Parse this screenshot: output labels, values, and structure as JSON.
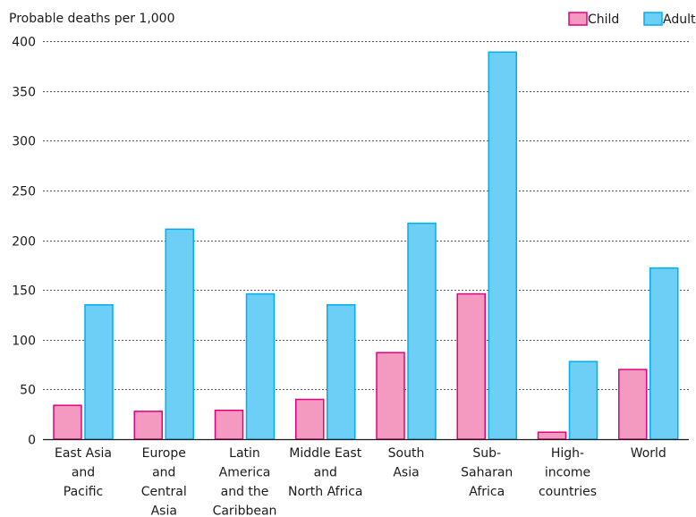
{
  "chart_data": {
    "type": "bar",
    "ylabel": "Probable deaths per 1,000",
    "ylim": [
      0,
      400
    ],
    "yticks": [
      0,
      50,
      100,
      150,
      200,
      250,
      300,
      350,
      400
    ],
    "grid": true,
    "legend_position": "top-right",
    "categories": [
      [
        "East Asia",
        "and",
        "Pacific"
      ],
      [
        "Europe",
        "and",
        "Central",
        "Asia"
      ],
      [
        "Latin",
        "America",
        "and the",
        "Caribbean"
      ],
      [
        "Middle East",
        "and",
        "North Africa"
      ],
      [
        "South",
        "Asia"
      ],
      [
        "Sub-",
        "Saharan",
        "Africa"
      ],
      [
        "High-",
        "income",
        "countries"
      ],
      [
        "World"
      ]
    ],
    "series": [
      {
        "name": "Child",
        "color": "#f49ac1",
        "stroke": "#e3007e",
        "values": [
          34,
          28,
          29,
          40,
          87,
          146,
          7,
          70
        ]
      },
      {
        "name": "Adult",
        "color": "#6dcff6",
        "stroke": "#00aeef",
        "values": [
          135,
          211,
          146,
          135,
          217,
          389,
          78,
          172
        ]
      }
    ]
  }
}
